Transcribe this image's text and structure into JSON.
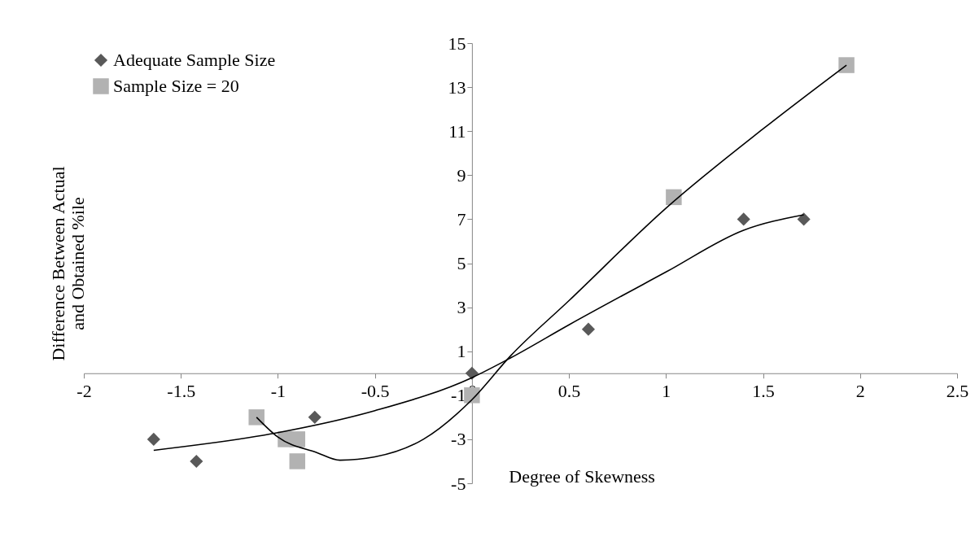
{
  "chart_data": {
    "type": "scatter",
    "xlabel": "Degree of Skewness",
    "ylabel": "Difference Between Actual and Obtained %ile",
    "xlim": [
      -2,
      2.5
    ],
    "xticks": [
      -2,
      -1.5,
      -1,
      -0.5,
      0,
      0.5,
      1,
      1.5,
      2,
      2.5
    ],
    "ylim": [
      -5,
      15
    ],
    "yticks": [
      -5,
      -3,
      -1,
      1,
      3,
      5,
      7,
      9,
      11,
      13,
      15
    ],
    "grid": false,
    "legend": "top left",
    "series": [
      {
        "name": "Adequate Sample Size",
        "type": "scatter",
        "marker": "diamond",
        "color": "#595959",
        "x": [
          -1.64,
          -1.42,
          -0.81,
          0,
          0.6,
          1.4,
          1.71
        ],
        "values": [
          -3,
          -4,
          -2,
          0,
          2,
          7,
          7
        ]
      },
      {
        "name": "Sample Size = 20",
        "type": "scatter",
        "marker": "square",
        "color": "#b2b2b2",
        "x": [
          -1.11,
          -0.96,
          -0.9,
          -0.9,
          0,
          1.04,
          1.93
        ],
        "values": [
          -2,
          -3,
          -3,
          -4,
          -1,
          8,
          14
        ]
      },
      {
        "type": "line",
        "marker": "none",
        "line_style": "solid",
        "color": "#000000",
        "x": [
          -1.64,
          -1.0,
          -0.5,
          0,
          0.2,
          0.5,
          1.0,
          1.4,
          1.71
        ],
        "values": [
          -3.5,
          -2.7,
          -1.7,
          -0.2,
          0.7,
          2.2,
          4.6,
          6.5,
          7.2
        ]
      },
      {
        "type": "line",
        "marker": "none",
        "line_style": "solid",
        "color": "#000000",
        "x": [
          -1.11,
          -1.0,
          -0.8,
          -0.68,
          -0.5,
          -0.25,
          0,
          0.2,
          0.5,
          1.0,
          1.5,
          1.93
        ],
        "values": [
          -2,
          -2.9,
          -3.6,
          -3.95,
          -3.8,
          -3.0,
          -1.2,
          0.8,
          3.3,
          7.5,
          11.1,
          14
        ]
      }
    ]
  }
}
